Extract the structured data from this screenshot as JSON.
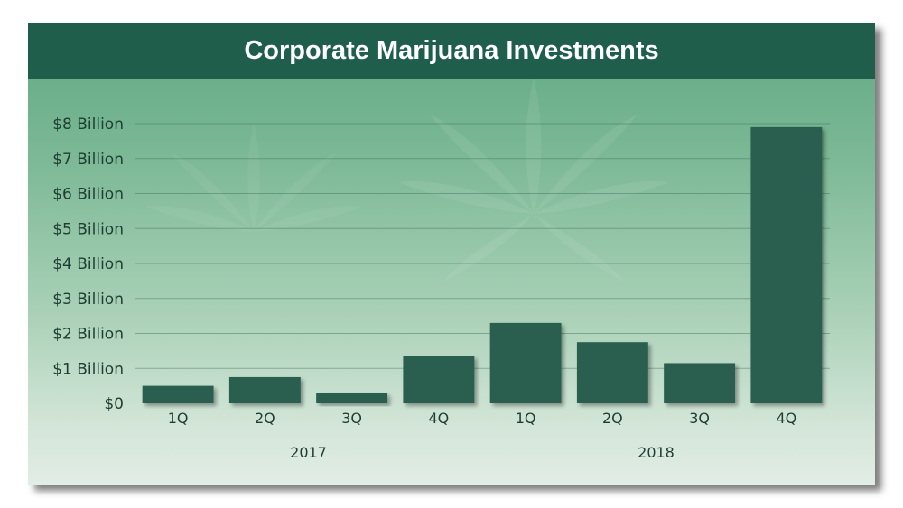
{
  "chart_data": {
    "type": "bar",
    "title": "Corporate Marijuana Investments",
    "xlabel": "",
    "ylabel": "",
    "ylim": [
      0,
      8
    ],
    "yticks": [
      {
        "value": 0,
        "label": "$0"
      },
      {
        "value": 1,
        "label": "$1 Billion"
      },
      {
        "value": 2,
        "label": "$2 Billion"
      },
      {
        "value": 3,
        "label": "$3 Billion"
      },
      {
        "value": 4,
        "label": "$4 Billion"
      },
      {
        "value": 5,
        "label": "$5 Billion"
      },
      {
        "value": 6,
        "label": "$6 Billion"
      },
      {
        "value": 7,
        "label": "$7 Billion"
      },
      {
        "value": 8,
        "label": "$8 Billion"
      }
    ],
    "categories": [
      "1Q",
      "2Q",
      "3Q",
      "4Q",
      "1Q",
      "2Q",
      "3Q",
      "4Q"
    ],
    "values": [
      0.5,
      0.75,
      0.3,
      1.35,
      2.3,
      1.75,
      1.15,
      7.9
    ],
    "groups": [
      {
        "label": "2017",
        "count": 4
      },
      {
        "label": "2018",
        "count": 4
      }
    ],
    "grid": true,
    "bar_color": "#2b5e50",
    "header_color": "#1e5e4b"
  }
}
